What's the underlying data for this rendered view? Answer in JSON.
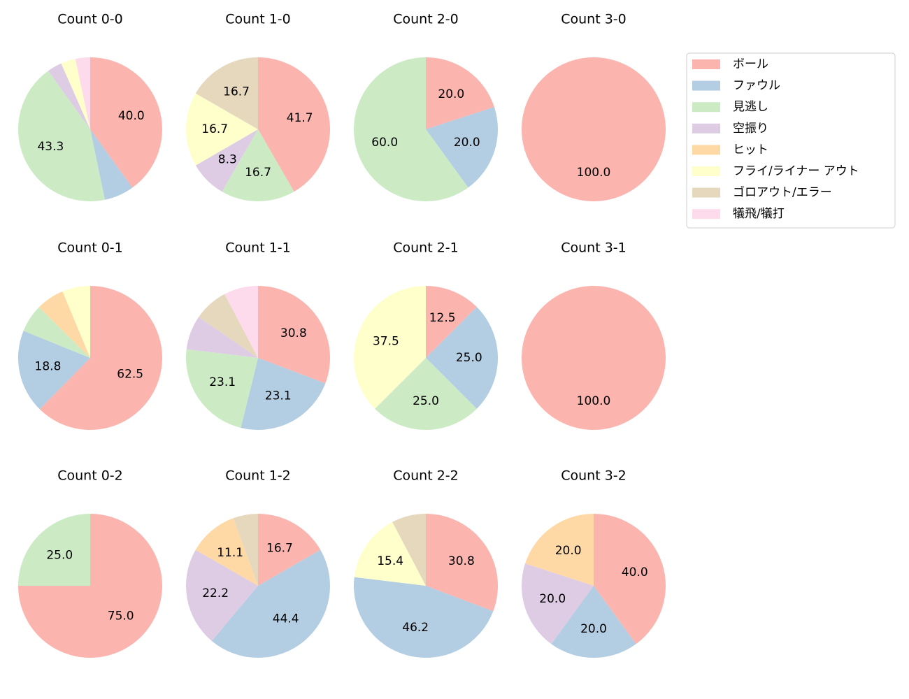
{
  "chart_data": [
    {
      "type": "pie",
      "title": "Count 0-0",
      "legend": "right",
      "categories": [
        "ボール",
        "ファウル",
        "見逃し",
        "空振り",
        "ヒット",
        "フライ/ライナー アウト",
        "ゴロアウト/エラー",
        "犠飛/犠打"
      ],
      "colors": [
        "#fbb4ae",
        "#b3cde3",
        "#ccebc5",
        "#decbe4",
        "#fed9a6",
        "#ffffcc",
        "#e5d8bd",
        "#fddaec"
      ],
      "values": [
        40,
        6.7,
        43.3,
        3.3,
        0,
        3.3,
        0,
        3.3
      ],
      "value_labels": [
        "40.0",
        null,
        "43.3",
        null,
        null,
        null,
        null,
        null
      ]
    },
    {
      "type": "pie",
      "title": "Count 1-0",
      "categories": [
        "ボール",
        "ファウル",
        "見逃し",
        "空振り",
        "ヒット",
        "フライ/ライナー アウト",
        "ゴロアウト/エラー",
        "犠飛/犠打"
      ],
      "colors": [
        "#fbb4ae",
        "#b3cde3",
        "#ccebc5",
        "#decbe4",
        "#fed9a6",
        "#ffffcc",
        "#e5d8bd",
        "#fddaec"
      ],
      "values": [
        41.7,
        0,
        16.7,
        8.3,
        0,
        16.7,
        16.7,
        0
      ],
      "value_labels": [
        "41.7",
        null,
        "16.7",
        "8.3",
        null,
        "16.7",
        "16.7",
        null
      ]
    },
    {
      "type": "pie",
      "title": "Count 2-0",
      "categories": [
        "ボール",
        "ファウル",
        "見逃し",
        "空振り",
        "ヒット",
        "フライ/ライナー アウト",
        "ゴロアウト/エラー",
        "犠飛/犠打"
      ],
      "colors": [
        "#fbb4ae",
        "#b3cde3",
        "#ccebc5",
        "#decbe4",
        "#fed9a6",
        "#ffffcc",
        "#e5d8bd",
        "#fddaec"
      ],
      "values": [
        20,
        20,
        60,
        0,
        0,
        0,
        0,
        0
      ],
      "value_labels": [
        "20.0",
        "20.0",
        "60.0",
        null,
        null,
        null,
        null,
        null
      ]
    },
    {
      "type": "pie",
      "title": "Count 3-0",
      "categories": [
        "ボール",
        "ファウル",
        "見逃し",
        "空振り",
        "ヒット",
        "フライ/ライナー アウト",
        "ゴロアウト/エラー",
        "犠飛/犠打"
      ],
      "colors": [
        "#fbb4ae",
        "#b3cde3",
        "#ccebc5",
        "#decbe4",
        "#fed9a6",
        "#ffffcc",
        "#e5d8bd",
        "#fddaec"
      ],
      "values": [
        100,
        0,
        0,
        0,
        0,
        0,
        0,
        0
      ],
      "value_labels": [
        "100.0",
        null,
        null,
        null,
        null,
        null,
        null,
        null
      ]
    },
    {
      "type": "pie",
      "title": "Count 0-1",
      "categories": [
        "ボール",
        "ファウル",
        "見逃し",
        "空振り",
        "ヒット",
        "フライ/ライナー アウト",
        "ゴロアウト/エラー",
        "犠飛/犠打"
      ],
      "colors": [
        "#fbb4ae",
        "#b3cde3",
        "#ccebc5",
        "#decbe4",
        "#fed9a6",
        "#ffffcc",
        "#e5d8bd",
        "#fddaec"
      ],
      "values": [
        62.5,
        18.8,
        6.3,
        0,
        6.3,
        6.3,
        0,
        0
      ],
      "value_labels": [
        "62.5",
        "18.8",
        null,
        null,
        null,
        null,
        null,
        null
      ]
    },
    {
      "type": "pie",
      "title": "Count 1-1",
      "categories": [
        "ボール",
        "ファウル",
        "見逃し",
        "空振り",
        "ヒット",
        "フライ/ライナー アウト",
        "ゴロアウト/エラー",
        "犠飛/犠打"
      ],
      "colors": [
        "#fbb4ae",
        "#b3cde3",
        "#ccebc5",
        "#decbe4",
        "#fed9a6",
        "#ffffcc",
        "#e5d8bd",
        "#fddaec"
      ],
      "values": [
        30.8,
        23.1,
        23.1,
        7.7,
        0,
        0,
        7.7,
        7.7
      ],
      "value_labels": [
        "30.8",
        "23.1",
        "23.1",
        null,
        null,
        null,
        null,
        null
      ]
    },
    {
      "type": "pie",
      "title": "Count 2-1",
      "categories": [
        "ボール",
        "ファウル",
        "見逃し",
        "空振り",
        "ヒット",
        "フライ/ライナー アウト",
        "ゴロアウト/エラー",
        "犠飛/犠打"
      ],
      "colors": [
        "#fbb4ae",
        "#b3cde3",
        "#ccebc5",
        "#decbe4",
        "#fed9a6",
        "#ffffcc",
        "#e5d8bd",
        "#fddaec"
      ],
      "values": [
        12.5,
        25,
        25,
        0,
        0,
        37.5,
        0,
        0
      ],
      "value_labels": [
        "12.5",
        "25.0",
        "25.0",
        null,
        null,
        "37.5",
        null,
        null
      ]
    },
    {
      "type": "pie",
      "title": "Count 3-1",
      "categories": [
        "ボール",
        "ファウル",
        "見逃し",
        "空振り",
        "ヒット",
        "フライ/ライナー アウト",
        "ゴロアウト/エラー",
        "犠飛/犠打"
      ],
      "colors": [
        "#fbb4ae",
        "#b3cde3",
        "#ccebc5",
        "#decbe4",
        "#fed9a6",
        "#ffffcc",
        "#e5d8bd",
        "#fddaec"
      ],
      "values": [
        100,
        0,
        0,
        0,
        0,
        0,
        0,
        0
      ],
      "value_labels": [
        "100.0",
        null,
        null,
        null,
        null,
        null,
        null,
        null
      ]
    },
    {
      "type": "pie",
      "title": "Count 0-2",
      "categories": [
        "ボール",
        "ファウル",
        "見逃し",
        "空振り",
        "ヒット",
        "フライ/ライナー アウト",
        "ゴロアウト/エラー",
        "犠飛/犠打"
      ],
      "colors": [
        "#fbb4ae",
        "#b3cde3",
        "#ccebc5",
        "#decbe4",
        "#fed9a6",
        "#ffffcc",
        "#e5d8bd",
        "#fddaec"
      ],
      "values": [
        75,
        0,
        25,
        0,
        0,
        0,
        0,
        0
      ],
      "value_labels": [
        "75.0",
        null,
        "25.0",
        null,
        null,
        null,
        null,
        null
      ]
    },
    {
      "type": "pie",
      "title": "Count 1-2",
      "categories": [
        "ボール",
        "ファウル",
        "見逃し",
        "空振り",
        "ヒット",
        "フライ/ライナー アウト",
        "ゴロアウト/エラー",
        "犠飛/犠打"
      ],
      "colors": [
        "#fbb4ae",
        "#b3cde3",
        "#ccebc5",
        "#decbe4",
        "#fed9a6",
        "#ffffcc",
        "#e5d8bd",
        "#fddaec"
      ],
      "values": [
        16.7,
        44.4,
        0,
        22.2,
        11.1,
        0,
        5.6,
        0
      ],
      "value_labels": [
        "16.7",
        "44.4",
        null,
        "22.2",
        "11.1",
        null,
        null,
        null
      ]
    },
    {
      "type": "pie",
      "title": "Count 2-2",
      "categories": [
        "ボール",
        "ファウル",
        "見逃し",
        "空振り",
        "ヒット",
        "フライ/ライナー アウト",
        "ゴロアウト/エラー",
        "犠飛/犠打"
      ],
      "colors": [
        "#fbb4ae",
        "#b3cde3",
        "#ccebc5",
        "#decbe4",
        "#fed9a6",
        "#ffffcc",
        "#e5d8bd",
        "#fddaec"
      ],
      "values": [
        30.8,
        46.2,
        0,
        0,
        0,
        15.4,
        7.7,
        0
      ],
      "value_labels": [
        "30.8",
        "46.2",
        null,
        null,
        null,
        "15.4",
        null,
        null
      ]
    },
    {
      "type": "pie",
      "title": "Count 3-2",
      "categories": [
        "ボール",
        "ファウル",
        "見逃し",
        "空振り",
        "ヒット",
        "フライ/ライナー アウト",
        "ゴロアウト/エラー",
        "犠飛/犠打"
      ],
      "colors": [
        "#fbb4ae",
        "#b3cde3",
        "#ccebc5",
        "#decbe4",
        "#fed9a6",
        "#ffffcc",
        "#e5d8bd",
        "#fddaec"
      ],
      "values": [
        40,
        20,
        0,
        20,
        20,
        0,
        0,
        0
      ],
      "value_labels": [
        "40.0",
        "20.0",
        null,
        "20.0",
        "20.0",
        null,
        null,
        null
      ]
    }
  ]
}
